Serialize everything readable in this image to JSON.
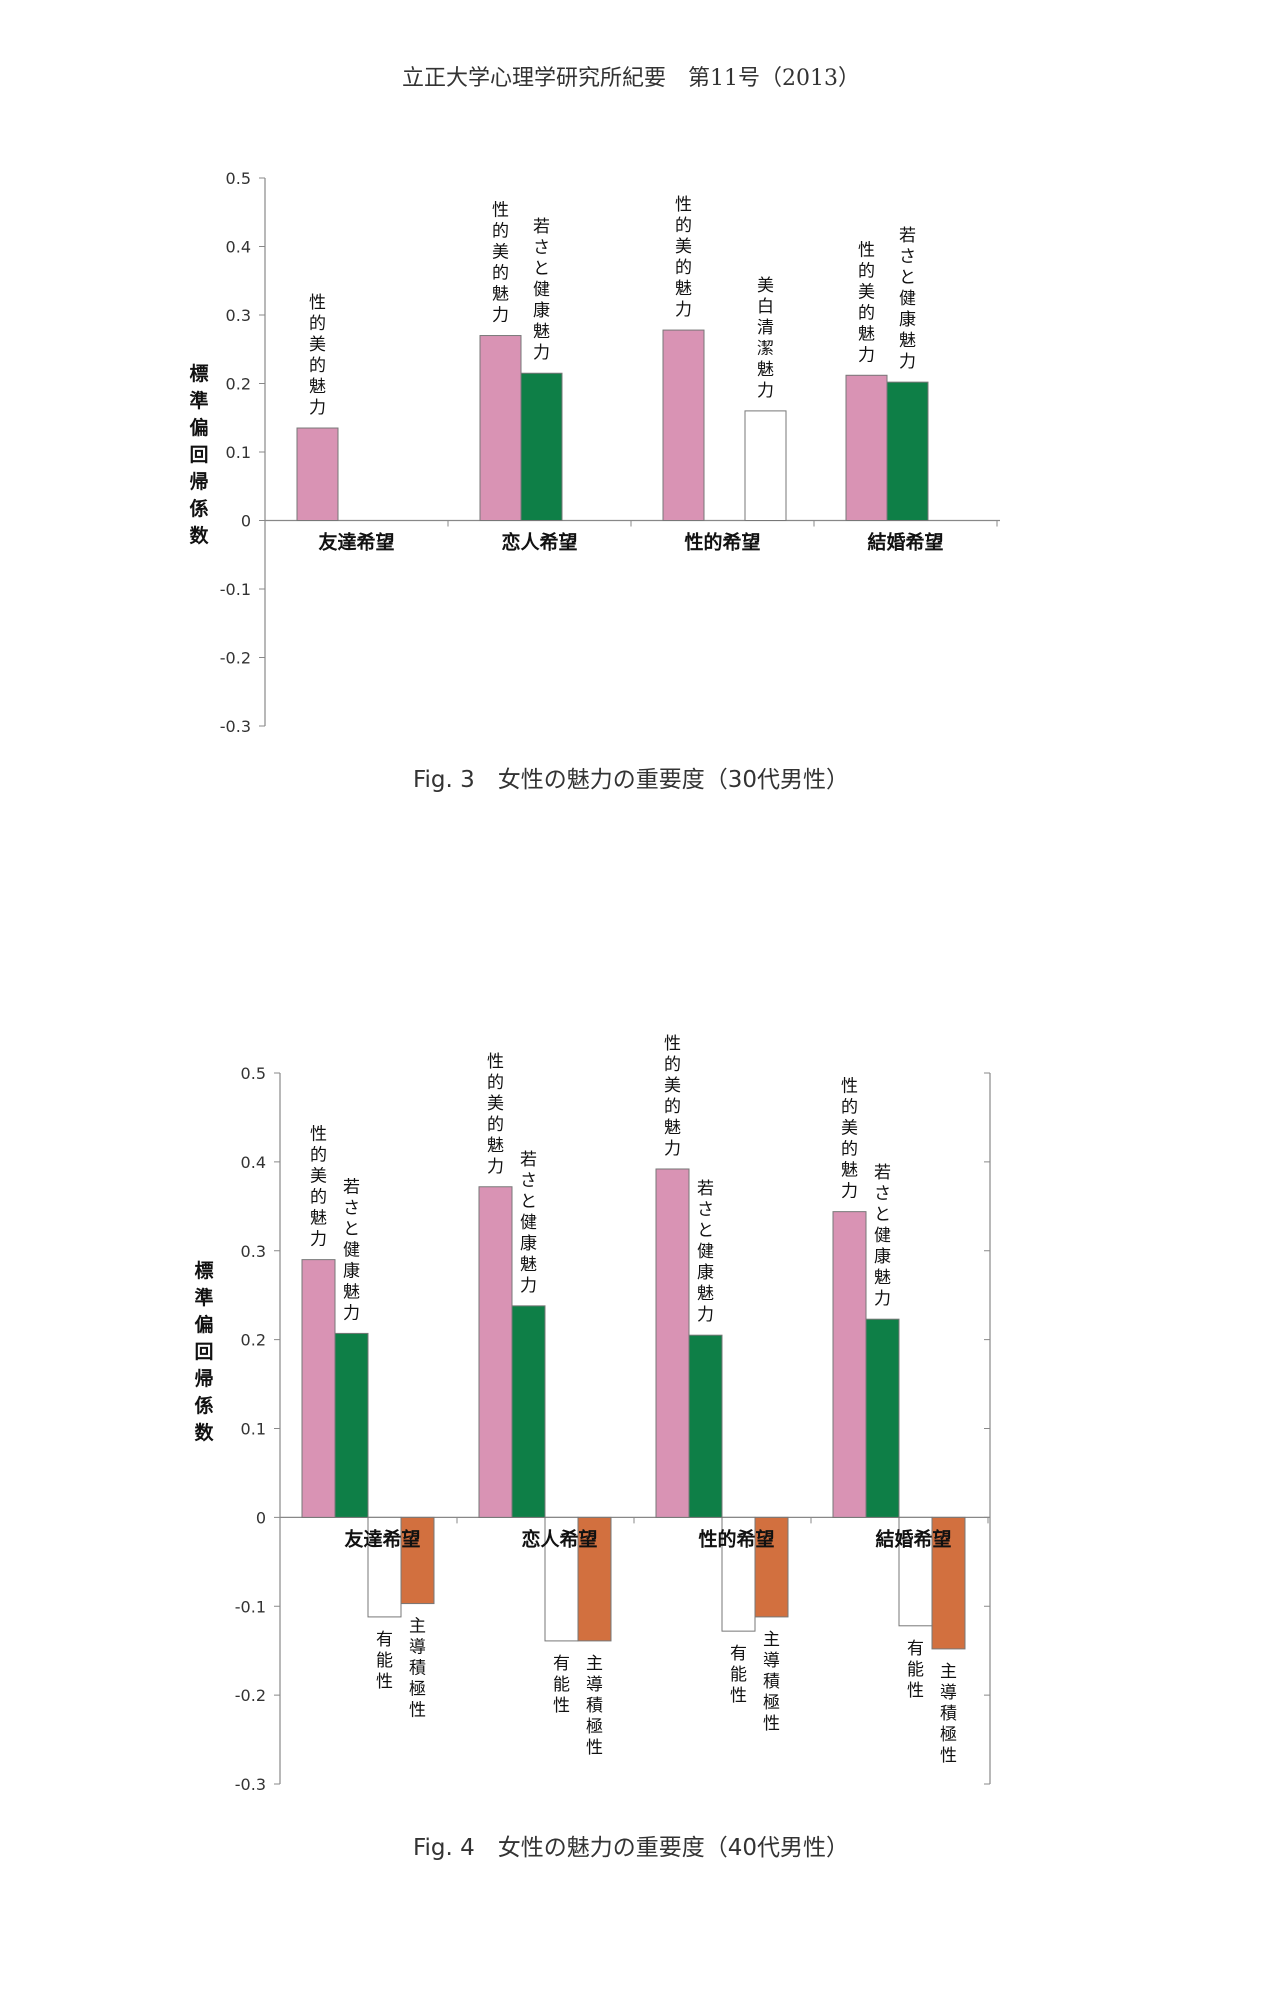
{
  "header": "立正大学心理学研究所紀要　第11号（2013）",
  "colors": {
    "pink": "#d993b4",
    "green": "#0e7f47",
    "white": "#ffffff",
    "orange": "#d2703f",
    "axis": "#888888"
  },
  "chart_data": [
    {
      "type": "bar",
      "caption": "Fig. 3　女性の魅力の重要度（30代男性）",
      "ylabel": "標準偏回帰係数",
      "ylim": [
        -0.3,
        0.5
      ],
      "yticks": [
        "0.5",
        "0.4",
        "0.3",
        "0.2",
        "0.1",
        "0",
        "-0.1",
        "-0.2",
        "-0.3"
      ],
      "categories": [
        "友達希望",
        "恋人希望",
        "性的希望",
        "結婚希望"
      ],
      "groups": [
        {
          "category": "友達希望",
          "bars": [
            {
              "label": "性的美的魅力",
              "value": 0.135,
              "color": "pink"
            }
          ]
        },
        {
          "category": "恋人希望",
          "bars": [
            {
              "label": "性的美的魅力",
              "value": 0.27,
              "color": "pink"
            },
            {
              "label": "若さと健康魅力",
              "value": 0.215,
              "color": "green"
            }
          ]
        },
        {
          "category": "性的希望",
          "bars": [
            {
              "label": "性的美的魅力",
              "value": 0.278,
              "color": "pink"
            },
            {
              "label": "",
              "value": 0,
              "color": "none"
            },
            {
              "label": "美白清潔魅力",
              "value": 0.16,
              "color": "white"
            }
          ]
        },
        {
          "category": "結婚希望",
          "bars": [
            {
              "label": "性的美的魅力",
              "value": 0.212,
              "color": "pink"
            },
            {
              "label": "若さと健康魅力",
              "value": 0.202,
              "color": "green"
            }
          ]
        }
      ]
    },
    {
      "type": "bar",
      "caption": "Fig. 4　女性の魅力の重要度（40代男性）",
      "ylabel": "標準偏回帰係数",
      "ylim": [
        -0.3,
        0.5
      ],
      "yticks": [
        "0.5",
        "0.4",
        "0.3",
        "0.2",
        "0.1",
        "0",
        "-0.1",
        "-0.2",
        "-0.3"
      ],
      "categories": [
        "友達希望",
        "恋人希望",
        "性的希望",
        "結婚希望"
      ],
      "groups": [
        {
          "category": "友達希望",
          "bars": [
            {
              "label": "性的美的魅力",
              "value": 0.29,
              "color": "pink"
            },
            {
              "label": "若さと健康魅力",
              "value": 0.207,
              "color": "green"
            },
            {
              "label": "有能性",
              "value": -0.112,
              "color": "white"
            },
            {
              "label": "主導積極性",
              "value": -0.097,
              "color": "orange"
            }
          ]
        },
        {
          "category": "恋人希望",
          "bars": [
            {
              "label": "性的美的魅力",
              "value": 0.372,
              "color": "pink"
            },
            {
              "label": "若さと健康魅力",
              "value": 0.238,
              "color": "green"
            },
            {
              "label": "有能性",
              "value": -0.139,
              "color": "white"
            },
            {
              "label": "主導積極性",
              "value": -0.139,
              "color": "orange"
            }
          ]
        },
        {
          "category": "性的希望",
          "bars": [
            {
              "label": "性的美的魅力",
              "value": 0.392,
              "color": "pink"
            },
            {
              "label": "若さと健康魅力",
              "value": 0.205,
              "color": "green"
            },
            {
              "label": "有能性",
              "value": -0.128,
              "color": "white"
            },
            {
              "label": "主導積極性",
              "value": -0.112,
              "color": "orange"
            }
          ]
        },
        {
          "category": "結婚希望",
          "bars": [
            {
              "label": "性的美的魅力",
              "value": 0.344,
              "color": "pink"
            },
            {
              "label": "若さと健康魅力",
              "value": 0.223,
              "color": "green"
            },
            {
              "label": "有能性",
              "value": -0.122,
              "color": "white"
            },
            {
              "label": "主導積極性",
              "value": -0.148,
              "color": "orange"
            }
          ]
        }
      ]
    }
  ]
}
